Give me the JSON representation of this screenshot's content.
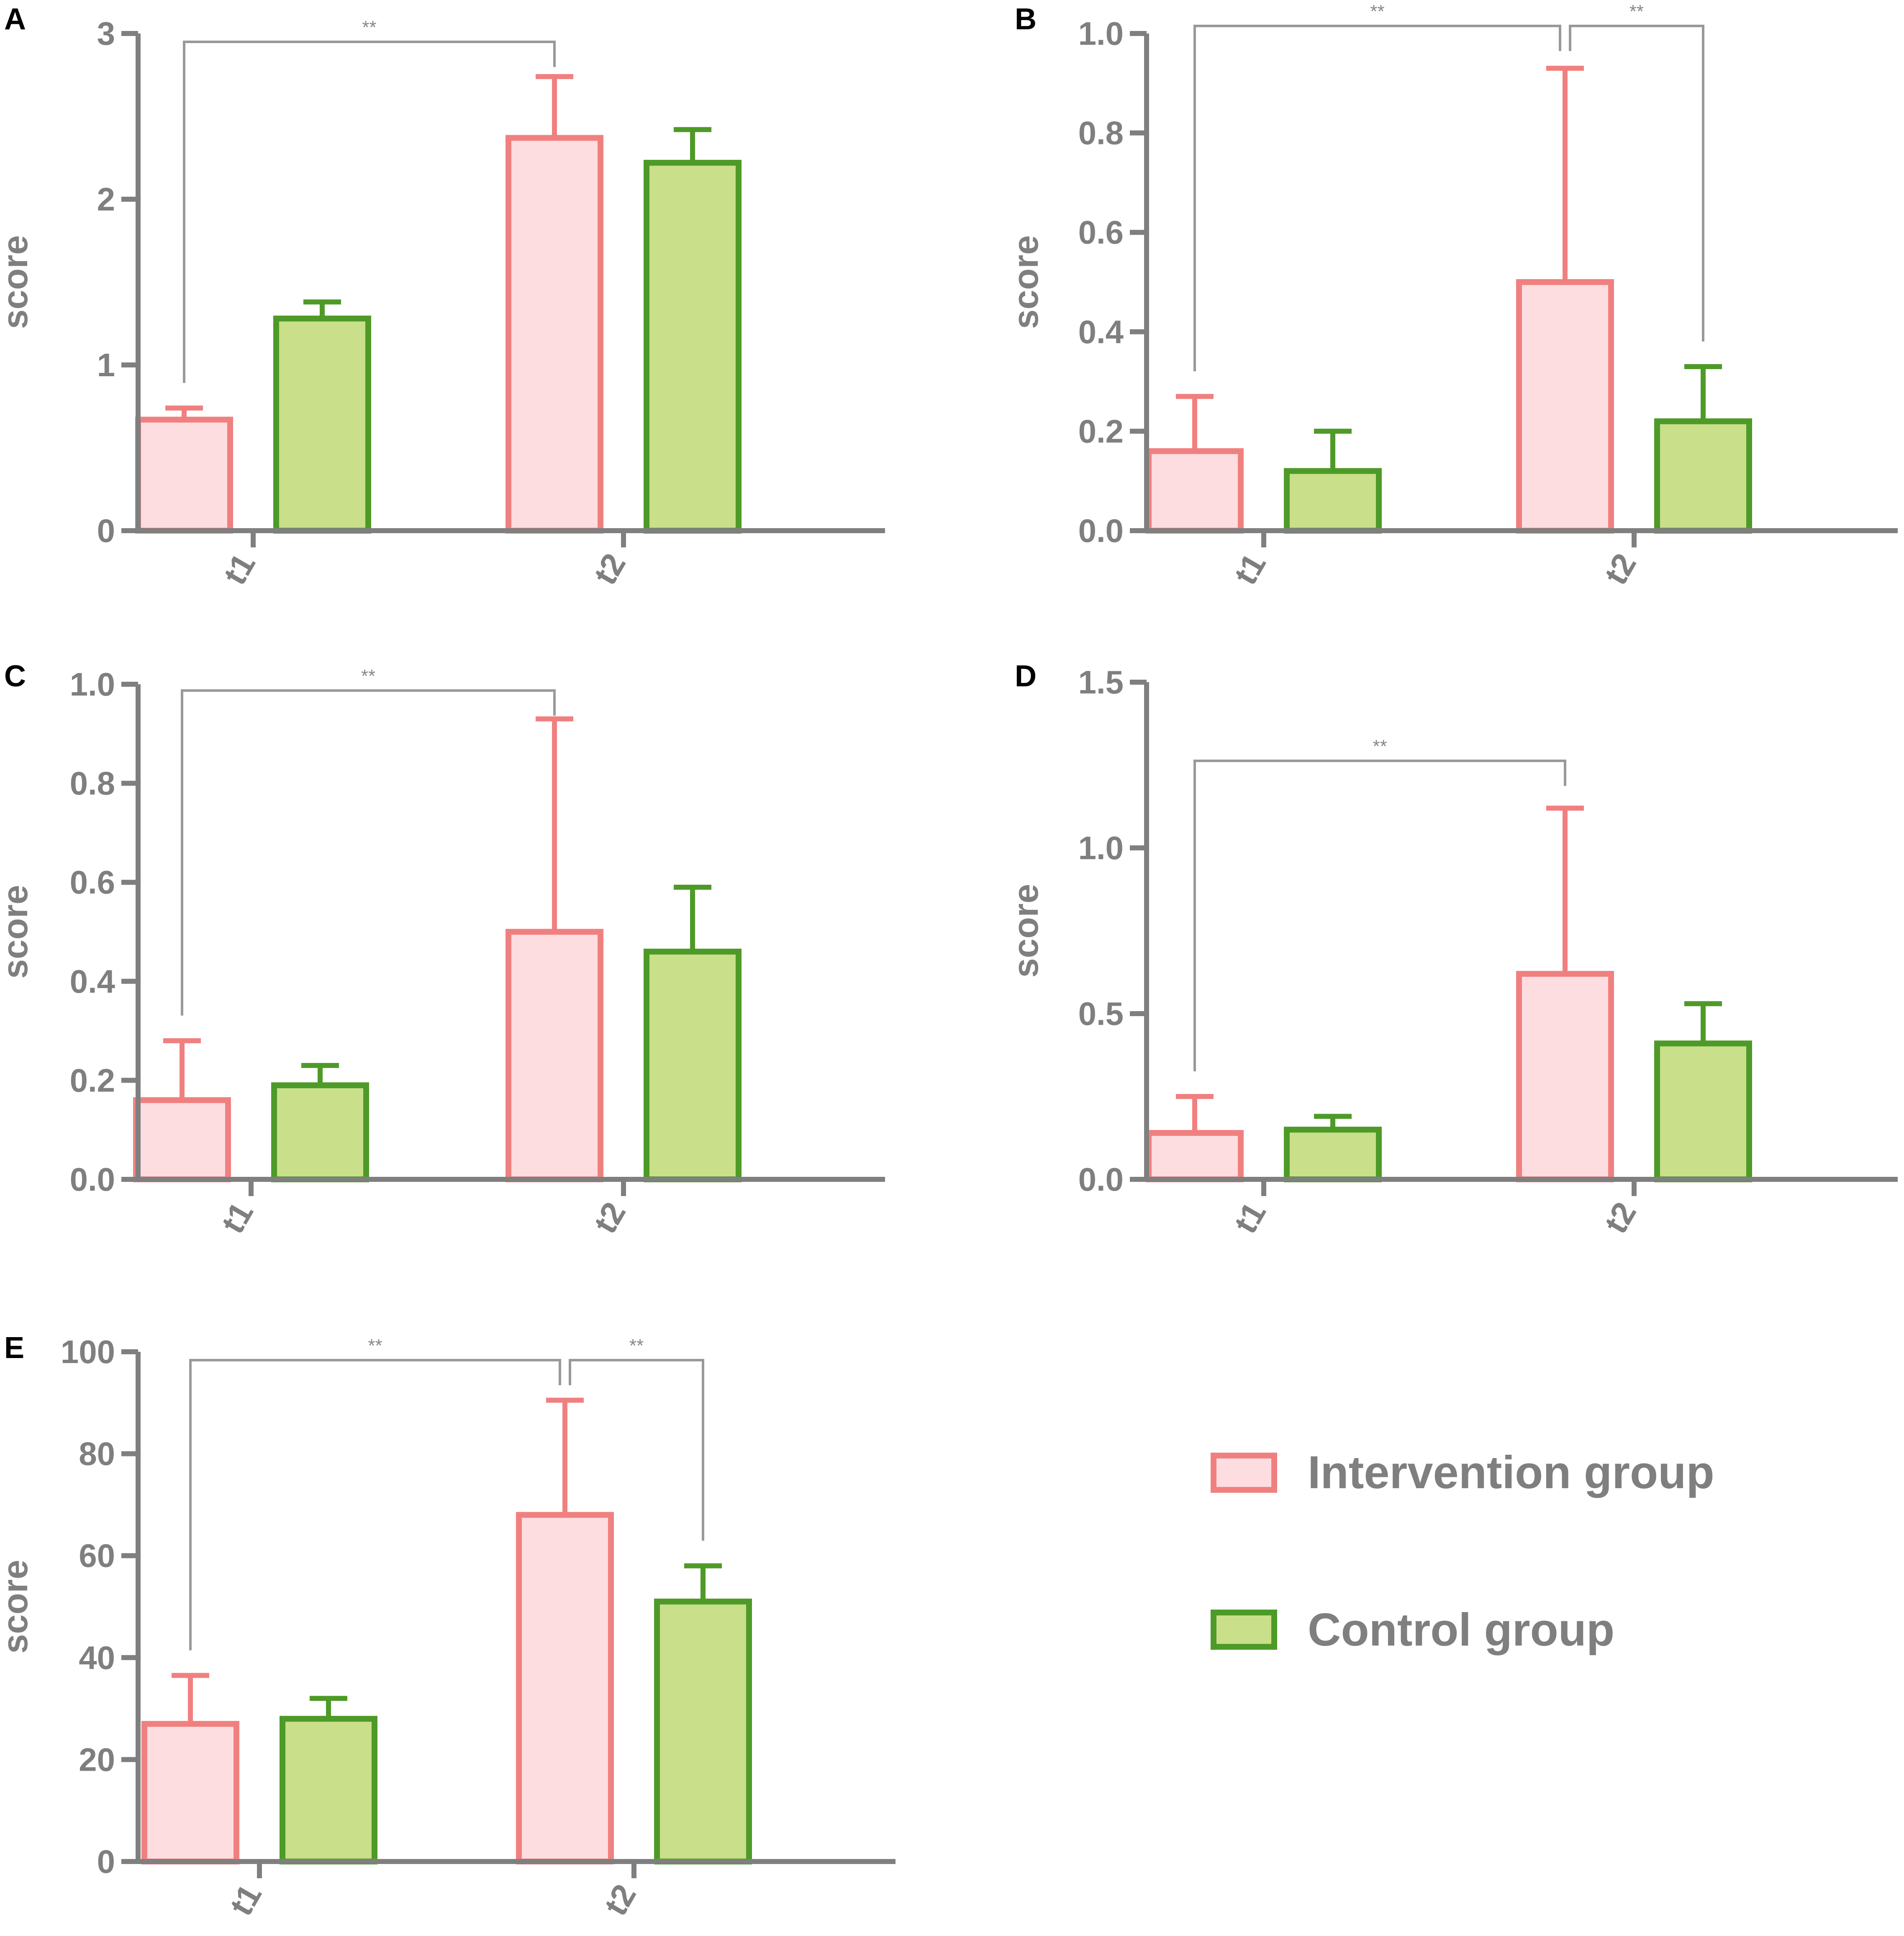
{
  "figure": {
    "legend": [
      {
        "label": "Intervention group",
        "fill": "#fddde0",
        "stroke": "#f08080"
      },
      {
        "label": "Control group",
        "fill": "#c9df8a",
        "stroke": "#4e9a28"
      }
    ]
  },
  "chart_data": [
    {
      "panel": "A",
      "type": "bar",
      "ylabel": "score",
      "ylim": [
        0,
        3
      ],
      "yticks": [
        "0",
        "1",
        "2",
        "3"
      ],
      "yticks_values": [
        0,
        1,
        2,
        3
      ],
      "categories": [
        "t1",
        "t2"
      ],
      "series": [
        {
          "name": "Intervention group",
          "values": [
            0.67,
            2.37
          ],
          "errors": [
            0.07,
            0.37
          ]
        },
        {
          "name": "Control group",
          "values": [
            1.28,
            2.22
          ],
          "errors": [
            0.1,
            0.2
          ]
        }
      ],
      "significance": [
        {
          "from": [
            "t1",
            0
          ],
          "to": [
            "t2",
            0
          ],
          "label": "**"
        }
      ]
    },
    {
      "panel": "B",
      "type": "bar",
      "ylabel": "score",
      "ylim": [
        0,
        1.0
      ],
      "yticks": [
        "0.0",
        "0.2",
        "0.4",
        "0.6",
        "0.8",
        "1.0"
      ],
      "yticks_values": [
        0,
        0.2,
        0.4,
        0.6,
        0.8,
        1.0
      ],
      "categories": [
        "t1",
        "t2"
      ],
      "series": [
        {
          "name": "Intervention group",
          "values": [
            0.16,
            0.5
          ],
          "errors": [
            0.11,
            0.43
          ]
        },
        {
          "name": "Control group",
          "values": [
            0.12,
            0.22
          ],
          "errors": [
            0.08,
            0.11
          ]
        }
      ],
      "significance": [
        {
          "from": [
            "t1",
            0
          ],
          "to": [
            "t2",
            0
          ],
          "label": "**"
        },
        {
          "from": [
            "t2",
            0
          ],
          "to": [
            "t2",
            1
          ],
          "label": "**"
        }
      ]
    },
    {
      "panel": "C",
      "type": "bar",
      "ylabel": "score",
      "ylim": [
        0,
        1.0
      ],
      "yticks": [
        "0.0",
        "0.2",
        "0.4",
        "0.6",
        "0.8",
        "1.0"
      ],
      "yticks_values": [
        0,
        0.2,
        0.4,
        0.6,
        0.8,
        1.0
      ],
      "categories": [
        "t1",
        "t2"
      ],
      "series": [
        {
          "name": "Intervention group",
          "values": [
            0.16,
            0.5
          ],
          "errors": [
            0.12,
            0.43
          ]
        },
        {
          "name": "Control group",
          "values": [
            0.19,
            0.46
          ],
          "errors": [
            0.04,
            0.13
          ]
        }
      ],
      "significance": [
        {
          "from": [
            "t1",
            0
          ],
          "to": [
            "t2",
            0
          ],
          "label": "**"
        }
      ]
    },
    {
      "panel": "D",
      "type": "bar",
      "ylabel": "score",
      "ylim": [
        0,
        1.5
      ],
      "yticks": [
        "0.0",
        "0.5",
        "1.0",
        "1.5"
      ],
      "yticks_values": [
        0,
        0.5,
        1.0,
        1.5
      ],
      "categories": [
        "t1",
        "t2"
      ],
      "series": [
        {
          "name": "Intervention group",
          "values": [
            0.14,
            0.62
          ],
          "errors": [
            0.11,
            0.5
          ]
        },
        {
          "name": "Control group",
          "values": [
            0.15,
            0.41
          ],
          "errors": [
            0.04,
            0.12
          ]
        }
      ],
      "significance": [
        {
          "from": [
            "t1",
            0
          ],
          "to": [
            "t2",
            0
          ],
          "label": "**"
        }
      ]
    },
    {
      "panel": "E",
      "type": "bar",
      "ylabel": "score",
      "ylim": [
        0,
        100
      ],
      "yticks": [
        "0",
        "20",
        "40",
        "60",
        "80",
        "100"
      ],
      "yticks_values": [
        0,
        20,
        40,
        60,
        80,
        100
      ],
      "categories": [
        "t1",
        "t2"
      ],
      "series": [
        {
          "name": "Intervention group",
          "values": [
            27,
            68
          ],
          "errors": [
            9.5,
            22.5
          ]
        },
        {
          "name": "Control group",
          "values": [
            28,
            51
          ],
          "errors": [
            4,
            7
          ]
        }
      ],
      "significance": [
        {
          "from": [
            "t1",
            0
          ],
          "to": [
            "t2",
            0
          ],
          "label": "**"
        },
        {
          "from": [
            "t2",
            0
          ],
          "to": [
            "t2",
            1
          ],
          "label": "**"
        }
      ]
    }
  ]
}
